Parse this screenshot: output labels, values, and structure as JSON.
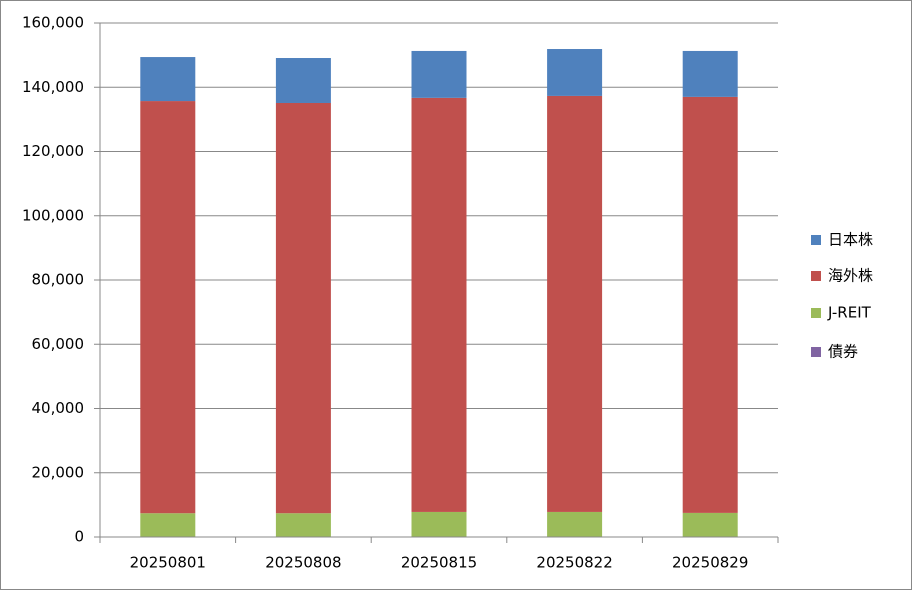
{
  "chart_data": {
    "type": "stacked-bar",
    "categories": [
      "20250801",
      "20250808",
      "20250815",
      "20250822",
      "20250829"
    ],
    "series": [
      {
        "name": "日本株",
        "color": "#4f81bd",
        "values": [
          13700,
          14000,
          14600,
          14600,
          14300
        ]
      },
      {
        "name": "海外株",
        "color": "#c0504d",
        "values": [
          128300,
          127700,
          128900,
          129500,
          129500
        ]
      },
      {
        "name": "J-REIT",
        "color": "#9bbb59",
        "values": [
          7400,
          7400,
          7800,
          7800,
          7500
        ]
      },
      {
        "name": "債券",
        "color": "#8064a2",
        "values": [
          0,
          0,
          0,
          0,
          0
        ]
      }
    ],
    "ylim": [
      0,
      160000
    ],
    "yticks": [
      0,
      {
        "value": 20000,
        "label": "20,000"
      },
      {
        "value": 40000,
        "label": "40,000"
      },
      {
        "value": 60000,
        "label": "60,000"
      },
      {
        "value": 80000,
        "label": "80,000"
      },
      {
        "value": 100000,
        "label": "100,000"
      },
      {
        "value": 120000,
        "label": "120,000"
      },
      {
        "value": 140000,
        "label": "140,000"
      },
      {
        "value": 160000,
        "label": "160,000"
      }
    ],
    "grid": true,
    "legend": "right"
  }
}
